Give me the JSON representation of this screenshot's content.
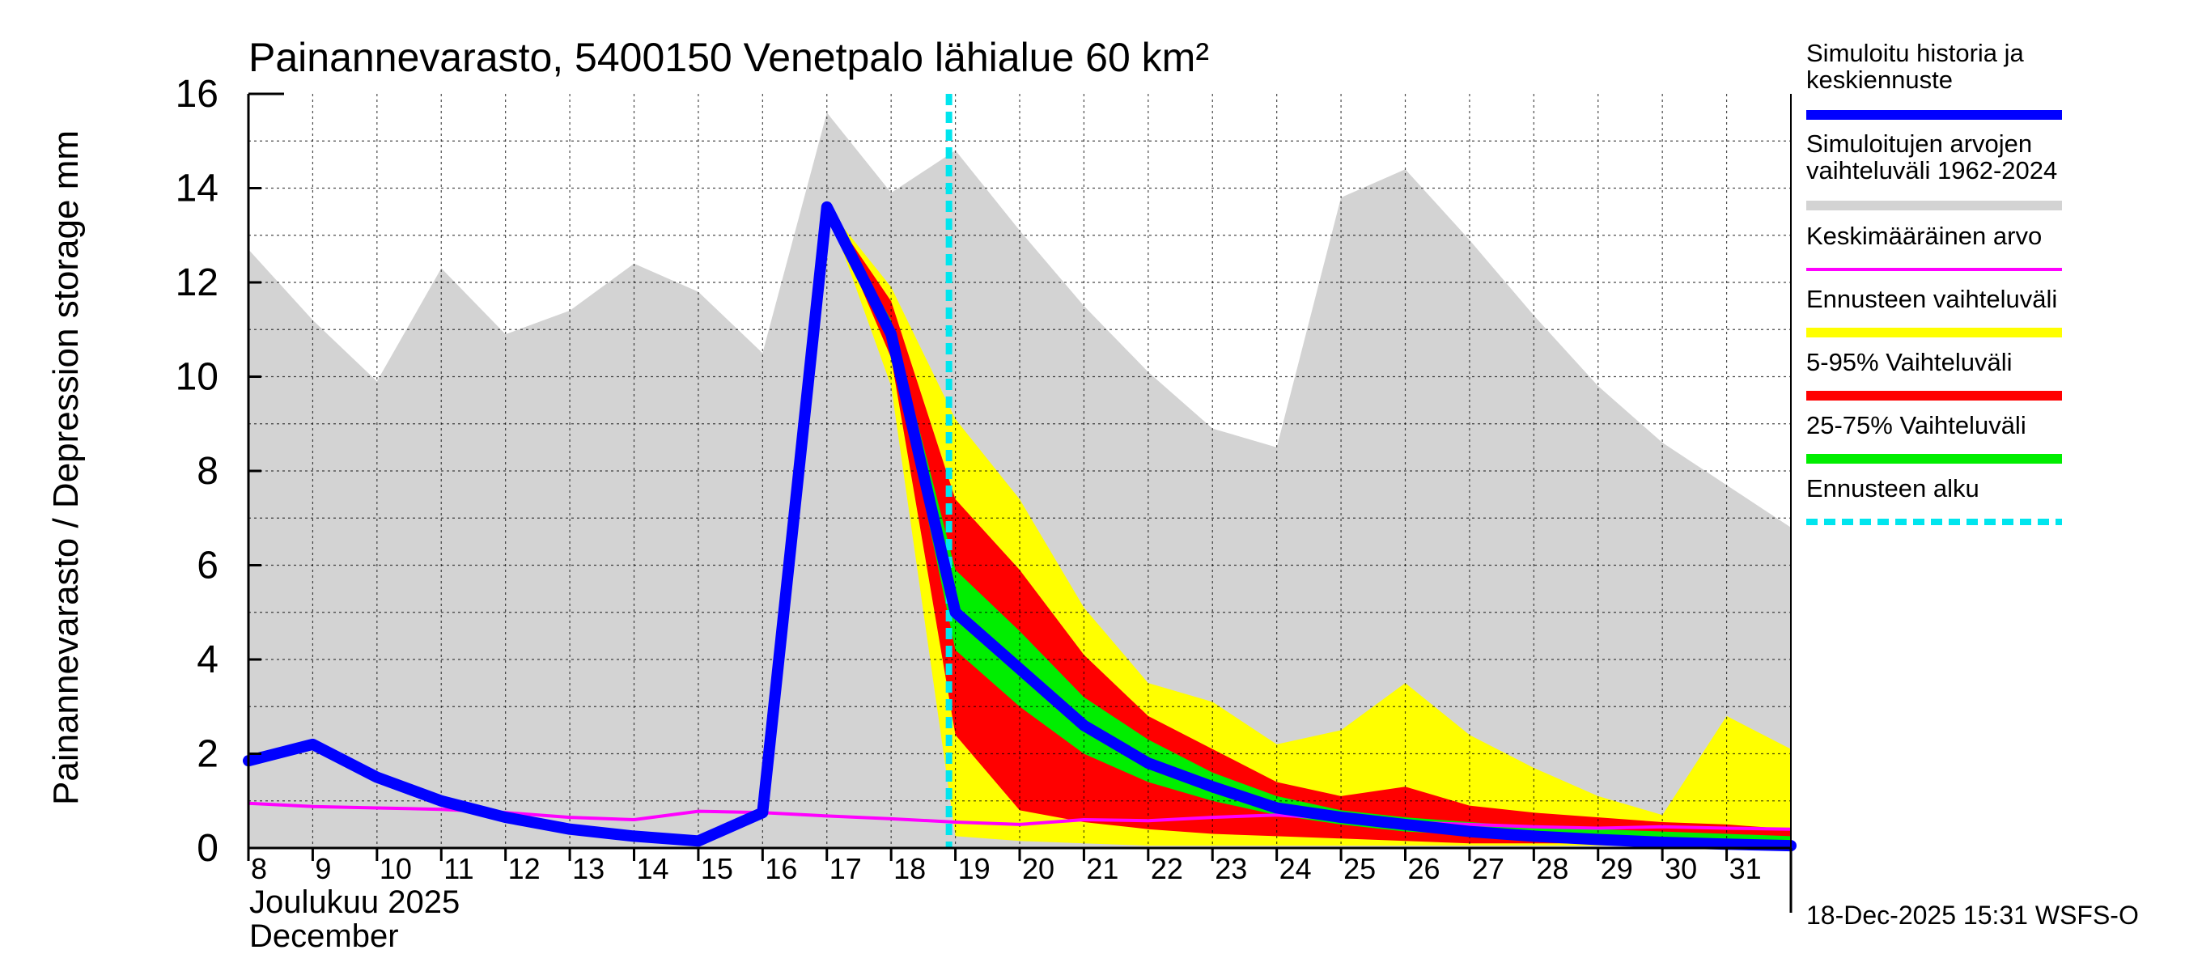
{
  "chart_data": {
    "type": "area",
    "title": "Painannevarasto, 5400150 Venetpalo lähialue 60 km²",
    "ylabel": "Painannevarasto / Depression storage    mm",
    "ylim": [
      0,
      16
    ],
    "yticks": [
      "0",
      "2",
      "4",
      "6",
      "8",
      "10",
      "12",
      "14",
      "16"
    ],
    "xlim": [
      8,
      32
    ],
    "x_ticks": [
      "8",
      "9",
      "10",
      "11",
      "12",
      "13",
      "14",
      "15",
      "16",
      "17",
      "18",
      "19",
      "20",
      "21",
      "22",
      "23",
      "24",
      "25",
      "26",
      "27",
      "28",
      "29",
      "30",
      "31"
    ],
    "month_label_fi": "Joulukuu  2025",
    "month_label_en": "December",
    "footer": "18-Dec-2025 15:31 WSFS-O",
    "forecast_start": 18.9,
    "historic_range": {
      "x": [
        8,
        9,
        10,
        11,
        12,
        13,
        14,
        15,
        16,
        17,
        18,
        19,
        20,
        21,
        22,
        23,
        24,
        25,
        26,
        27,
        28,
        29,
        30,
        31,
        32
      ],
      "upper": [
        12.7,
        11.2,
        9.9,
        12.3,
        10.9,
        11.4,
        12.4,
        11.8,
        10.5,
        15.6,
        13.9,
        14.8,
        13.1,
        11.5,
        10.1,
        8.9,
        8.5,
        13.8,
        14.4,
        12.9,
        11.3,
        9.8,
        8.6,
        7.7,
        6.8
      ],
      "lower": [
        0,
        0,
        0,
        0,
        0,
        0,
        0,
        0,
        0,
        0,
        0,
        0,
        0,
        0,
        0,
        0,
        0,
        0,
        0,
        0,
        0,
        0,
        0,
        0,
        0
      ]
    },
    "forecast_range": {
      "x": [
        17.0,
        18.0,
        19.0,
        20.0,
        21.0,
        22.0,
        23.0,
        24.0,
        25.0,
        26.0,
        27.0,
        28.0,
        29.0,
        30.0,
        31.0,
        32.0
      ],
      "upper": [
        13.6,
        11.9,
        9.1,
        7.4,
        5.1,
        3.5,
        3.1,
        2.2,
        2.5,
        3.5,
        2.4,
        1.7,
        1.1,
        0.7,
        2.8,
        2.1
      ],
      "lower": [
        13.6,
        9.8,
        0.25,
        0.15,
        0.1,
        0.05,
        0.05,
        0.05,
        0.05,
        0.05,
        0.05,
        0.05,
        0.05,
        0.05,
        0.05,
        0.05
      ]
    },
    "range_5_95": {
      "x": [
        17.0,
        18.0,
        19.0,
        20.0,
        21.0,
        22.0,
        23.0,
        24.0,
        25.0,
        26.0,
        27.0,
        28.0,
        29.0,
        30.0,
        31.0,
        32.0
      ],
      "upper": [
        13.6,
        11.6,
        7.4,
        5.9,
        4.1,
        2.8,
        2.1,
        1.4,
        1.1,
        1.3,
        0.9,
        0.75,
        0.65,
        0.55,
        0.5,
        0.4
      ],
      "lower": [
        13.6,
        10.4,
        2.4,
        0.8,
        0.55,
        0.4,
        0.3,
        0.25,
        0.2,
        0.15,
        0.1,
        0.1,
        0.1,
        0.1,
        0.1,
        0.1
      ]
    },
    "range_25_75": {
      "x": [
        17.0,
        18.0,
        19.0,
        20.0,
        21.0,
        22.0,
        23.0,
        24.0,
        25.0,
        26.0,
        27.0,
        28.0,
        29.0,
        30.0,
        31.0,
        32.0
      ],
      "upper": [
        13.6,
        11.2,
        5.9,
        4.6,
        3.2,
        2.3,
        1.6,
        1.1,
        0.8,
        0.65,
        0.55,
        0.45,
        0.4,
        0.35,
        0.3,
        0.25
      ],
      "lower": [
        13.6,
        10.7,
        4.2,
        3.0,
        2.0,
        1.4,
        1.0,
        0.7,
        0.5,
        0.35,
        0.28,
        0.22,
        0.18,
        0.15,
        0.12,
        0.1
      ]
    },
    "series": [
      {
        "name": "Simuloitu historia ja keskiennuste",
        "color": "#0000ff",
        "x": [
          8,
          9,
          10,
          11,
          12,
          13,
          14,
          15,
          16,
          17,
          18,
          19,
          20,
          21,
          22,
          23,
          24,
          25,
          26,
          27,
          28,
          29,
          30,
          31,
          32
        ],
        "values": [
          1.85,
          2.2,
          1.5,
          1.0,
          0.65,
          0.4,
          0.25,
          0.15,
          0.75,
          13.6,
          10.9,
          5.0,
          3.8,
          2.6,
          1.8,
          1.3,
          0.85,
          0.65,
          0.5,
          0.35,
          0.25,
          0.18,
          0.12,
          0.08,
          0.05
        ]
      },
      {
        "name": "Keskimääräinen arvo",
        "color": "#ff00ff",
        "x": [
          8,
          9,
          10,
          11,
          12,
          13,
          14,
          15,
          16,
          17,
          18,
          19,
          20,
          21,
          22,
          23,
          24,
          25,
          26,
          27,
          28,
          29,
          30,
          31,
          32
        ],
        "values": [
          0.95,
          0.88,
          0.85,
          0.82,
          0.75,
          0.65,
          0.6,
          0.78,
          0.75,
          0.68,
          0.62,
          0.55,
          0.5,
          0.6,
          0.58,
          0.65,
          0.7,
          0.62,
          0.55,
          0.5,
          0.45,
          0.42,
          0.45,
          0.42,
          0.4
        ]
      }
    ],
    "legend": [
      {
        "lines": [
          "Simuloitu historia ja",
          "keskiennuste"
        ],
        "color": "#0000ff",
        "style": "thick"
      },
      {
        "lines": [
          "Simuloitujen arvojen",
          "vaihteluväli 1962-2024"
        ],
        "color": "#d3d3d3",
        "style": "thick"
      },
      {
        "lines": [
          "Keskimääräinen arvo"
        ],
        "color": "#ff00ff",
        "style": "thin"
      },
      {
        "lines": [
          "Ennusteen vaihteluväli"
        ],
        "color": "#ffff00",
        "style": "thick"
      },
      {
        "lines": [
          "5-95% Vaihteluväli"
        ],
        "color": "#ff0000",
        "style": "thick"
      },
      {
        "lines": [
          "25-75% Vaihteluväli"
        ],
        "color": "#00ee00",
        "style": "thick"
      },
      {
        "lines": [
          "Ennusteen alku"
        ],
        "color": "#00e5ee",
        "style": "dashed"
      }
    ],
    "colors": {
      "historic": "#d3d3d3",
      "forecast": "#ffff00",
      "p5_95": "#ff0000",
      "p25_75": "#00ee00",
      "forecast_start": "#00e5ee"
    }
  }
}
